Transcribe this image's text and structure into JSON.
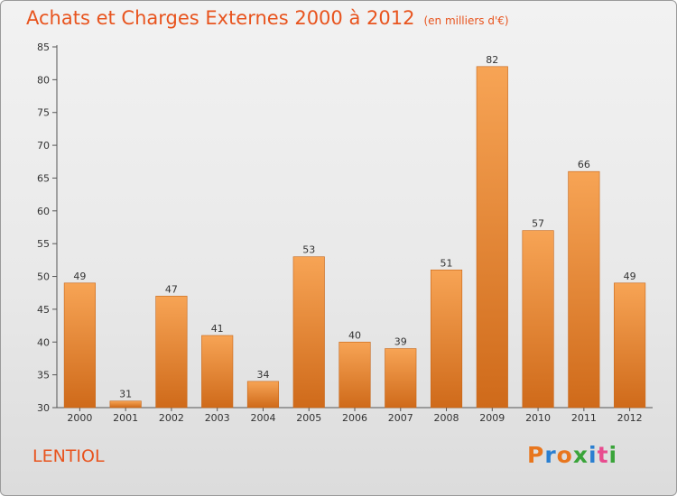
{
  "header": {
    "title": "Achats et Charges Externes 2000 à 2012",
    "unit": "(en milliers d'€)"
  },
  "commune": "LENTIOL",
  "logo": {
    "text": "Proxiti",
    "letters": [
      "P",
      "r",
      "o",
      "x",
      "i",
      "t",
      "i"
    ],
    "colors": [
      "#e8761e",
      "#2a7fd1",
      "#e8761e",
      "#3aa43a",
      "#2a7fd1",
      "#e84c8f",
      "#3aa43a"
    ]
  },
  "colors": {
    "bar_light": "#f7a455",
    "bar_dark": "#cf6a1a",
    "accent": "#e8541e"
  },
  "chart_data": {
    "type": "bar",
    "title": "Achats et Charges Externes 2000 à 2012",
    "subtitle": "(en milliers d'€)",
    "categories": [
      "2000",
      "2001",
      "2002",
      "2003",
      "2004",
      "2005",
      "2006",
      "2007",
      "2008",
      "2009",
      "2010",
      "2011",
      "2012"
    ],
    "values": [
      49,
      31,
      47,
      41,
      34,
      53,
      40,
      39,
      51,
      82,
      57,
      66,
      49
    ],
    "ylim": [
      30,
      85
    ],
    "yticks": [
      30,
      35,
      40,
      45,
      50,
      55,
      60,
      65,
      70,
      75,
      80,
      85
    ],
    "grid": false,
    "xlabel": "",
    "ylabel": ""
  }
}
